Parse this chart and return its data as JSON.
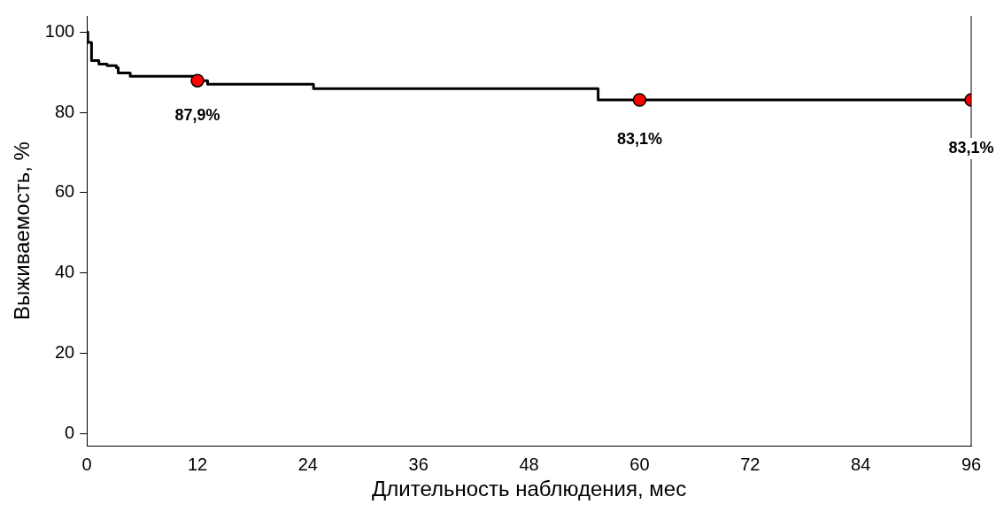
{
  "chart_data": {
    "type": "step",
    "xlabel": "Длительность наблюдения, мес",
    "ylabel": "Выживаемость, %",
    "xlim": [
      0,
      96
    ],
    "ylim": [
      -3,
      104
    ],
    "xticks": [
      0,
      12,
      24,
      36,
      48,
      60,
      72,
      84,
      96
    ],
    "yticks": [
      0,
      20,
      40,
      60,
      80,
      100
    ],
    "grid": false,
    "legend": false,
    "series": [
      {
        "color": "#000000",
        "marker": "none",
        "x": [
          0,
          0.1,
          0.5,
          1.3,
          2.2,
          3.2,
          3.4,
          4.7,
          11.6,
          13.1,
          24.6,
          55.5,
          96
        ],
        "values": [
          100,
          97.4,
          92.9,
          92.0,
          91.6,
          91.1,
          89.8,
          89.0,
          87.9,
          87.0,
          85.9,
          83.1,
          83.1
        ]
      },
      {
        "type": "scatter",
        "color": "#ff0000",
        "marker": "circle",
        "x": [
          12,
          60,
          96
        ],
        "values": [
          87.9,
          83.1,
          83.1
        ],
        "value_labels": [
          "87,9%",
          "83,1%",
          "83,1%"
        ]
      }
    ]
  }
}
